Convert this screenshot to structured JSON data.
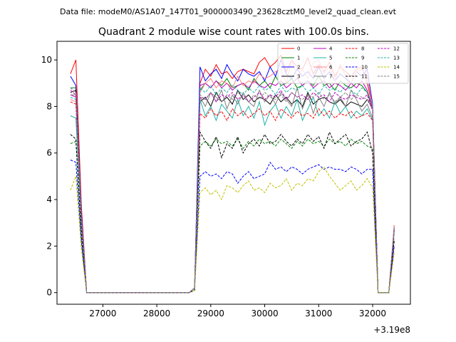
{
  "figure": {
    "suptitle": "Data file: modeM0/AS1A07_147T01_9000003490_23628cztM0_level2_quad_clean.evt"
  },
  "chart_data": {
    "type": "line",
    "title": "Quadrant 2 module wise count rates with 100.0s bins.",
    "xlabel": "",
    "ylabel": "",
    "offset_label": "+3.19e8",
    "xlim": [
      26150,
      32700
    ],
    "ylim": [
      -0.5,
      10.8
    ],
    "x_ticks": [
      "27000",
      "28000",
      "29000",
      "30000",
      "31000",
      "32000"
    ],
    "y_ticks": [
      "0",
      "2",
      "4",
      "6",
      "8",
      "10"
    ],
    "grid": false,
    "legend_position": "top-right",
    "x": [
      26400,
      26500,
      26600,
      26700,
      26800,
      26900,
      27000,
      27100,
      27200,
      27300,
      27400,
      27500,
      27600,
      27700,
      27800,
      27900,
      28000,
      28100,
      28200,
      28300,
      28400,
      28500,
      28600,
      28700,
      28800,
      28900,
      29000,
      29100,
      29200,
      29300,
      29400,
      29500,
      29600,
      29700,
      29800,
      29900,
      30000,
      30100,
      30200,
      30300,
      30400,
      30500,
      30600,
      30700,
      30800,
      30900,
      31000,
      31100,
      31200,
      31300,
      31400,
      31500,
      31600,
      31700,
      31800,
      31900,
      32000,
      32100,
      32200,
      32300,
      32400
    ],
    "series": [
      {
        "name": "0",
        "color": "#ff0000",
        "dash": "solid",
        "values": [
          9.4,
          10.0,
          3.8,
          0.0,
          0,
          0,
          0,
          0,
          0,
          0,
          0,
          0,
          0,
          0,
          0,
          0,
          0,
          0,
          0,
          0,
          0,
          0,
          0,
          0.2,
          9.0,
          9.6,
          9.3,
          9.8,
          9.4,
          9.5,
          9.2,
          9.5,
          9.6,
          9.5,
          9.4,
          9.9,
          10.1,
          9.7,
          9.9,
          10.2,
          9.5,
          10.0,
          9.7,
          9.6,
          10.1,
          9.4,
          9.8,
          9.5,
          9.9,
          9.3,
          9.7,
          9.5,
          9.3,
          9.6,
          9.7,
          9.0,
          8.0,
          0.0,
          0.0,
          0.0,
          2.9
        ]
      },
      {
        "name": "1",
        "color": "#008000",
        "dash": "solid",
        "values": [
          8.8,
          8.8,
          3.4,
          0.0,
          0,
          0,
          0,
          0,
          0,
          0,
          0,
          0,
          0,
          0,
          0,
          0,
          0,
          0,
          0,
          0,
          0,
          0,
          0,
          0.2,
          8.7,
          9.0,
          8.8,
          9.1,
          8.9,
          9.2,
          8.8,
          8.9,
          9.0,
          8.7,
          9.2,
          8.9,
          9.1,
          8.8,
          9.3,
          8.9,
          9.0,
          9.2,
          8.8,
          8.9,
          9.1,
          8.9,
          9.3,
          8.9,
          9.0,
          8.7,
          9.1,
          8.9,
          8.8,
          9.0,
          8.9,
          8.6,
          7.9,
          0.0,
          0.0,
          0.0,
          2.7
        ]
      },
      {
        "name": "2",
        "color": "#0000ff",
        "dash": "solid",
        "values": [
          9.3,
          8.9,
          3.5,
          0.0,
          0,
          0,
          0,
          0,
          0,
          0,
          0,
          0,
          0,
          0,
          0,
          0,
          0,
          0,
          0,
          0,
          0,
          0,
          0,
          0.2,
          9.7,
          9.1,
          9.4,
          9.6,
          9.2,
          9.8,
          9.4,
          9.1,
          9.6,
          9.4,
          9.3,
          9.5,
          9.1,
          9.7,
          9.3,
          10.0,
          9.4,
          9.2,
          9.6,
          9.3,
          9.5,
          9.2,
          9.7,
          9.2,
          9.5,
          9.1,
          9.4,
          9.2,
          9.0,
          9.5,
          9.3,
          9.6,
          8.1,
          0.0,
          0.0,
          0.0,
          2.8
        ]
      },
      {
        "name": "3",
        "color": "#000000",
        "dash": "solid",
        "values": [
          8.6,
          8.7,
          3.2,
          0.0,
          0,
          0,
          0,
          0,
          0,
          0,
          0,
          0,
          0,
          0,
          0,
          0,
          0,
          0,
          0,
          0,
          0,
          0,
          0,
          0.2,
          8.2,
          8.4,
          8.0,
          8.6,
          8.2,
          8.4,
          8.1,
          8.7,
          8.3,
          8.5,
          8.2,
          8.4,
          8.3,
          8.1,
          8.5,
          8.2,
          8.4,
          8.1,
          8.3,
          8.0,
          8.6,
          8.1,
          8.3,
          8.4,
          8.2,
          8.1,
          8.3,
          8.0,
          8.2,
          8.1,
          8.0,
          8.3,
          7.9,
          0.0,
          0.0,
          0.0,
          2.7
        ]
      },
      {
        "name": "4",
        "color": "#c000c0",
        "dash": "solid",
        "values": [
          8.5,
          8.4,
          3.3,
          0.0,
          0,
          0,
          0,
          0,
          0,
          0,
          0,
          0,
          0,
          0,
          0,
          0,
          0,
          0,
          0,
          0,
          0,
          0,
          0,
          0.2,
          8.9,
          9.0,
          8.8,
          9.1,
          8.8,
          9.0,
          8.7,
          8.9,
          9.0,
          8.8,
          9.1,
          8.9,
          8.8,
          9.0,
          8.9,
          9.1,
          8.8,
          9.0,
          9.2,
          8.9,
          9.1,
          8.8,
          9.0,
          9.1,
          8.8,
          9.0,
          8.9,
          8.7,
          9.0,
          8.8,
          9.1,
          8.7,
          7.9,
          0.0,
          0.0,
          0.0,
          2.8
        ]
      },
      {
        "name": "5",
        "color": "#20b2aa",
        "dash": "solid",
        "values": [
          7.6,
          7.5,
          3.0,
          0.0,
          0,
          0,
          0,
          0,
          0,
          0,
          0,
          0,
          0,
          0,
          0,
          0,
          0,
          0,
          0,
          0,
          0,
          0,
          0,
          0.2,
          8.3,
          7.6,
          8.0,
          7.4,
          8.1,
          7.8,
          7.5,
          8.3,
          7.6,
          8.0,
          7.5,
          8.2,
          7.2,
          7.8,
          8.1,
          7.5,
          8.0,
          7.6,
          8.3,
          7.4,
          7.9,
          8.4,
          7.6,
          7.9,
          7.5,
          8.2,
          7.7,
          8.0,
          7.5,
          7.8,
          7.6,
          7.9,
          7.4,
          0.0,
          0.0,
          0.0,
          2.6
        ]
      },
      {
        "name": "6",
        "color": "#ff8080",
        "dash": "solid",
        "values": [
          8.3,
          8.2,
          3.2,
          0.0,
          0,
          0,
          0,
          0,
          0,
          0,
          0,
          0,
          0,
          0,
          0,
          0,
          0,
          0,
          0,
          0,
          0,
          0,
          0,
          0.2,
          8.6,
          9.0,
          9.2,
          8.8,
          9.1,
          9.0,
          8.8,
          9.3,
          8.9,
          9.1,
          9.0,
          9.4,
          9.2,
          9.3,
          9.5,
          9.6,
          9.0,
          10.0,
          9.3,
          9.6,
          9.2,
          9.9,
          10.0,
          9.4,
          9.7,
          9.1,
          9.8,
          9.3,
          9.0,
          9.5,
          9.6,
          9.3,
          8.0,
          0.0,
          0.0,
          0.0,
          2.9
        ]
      },
      {
        "name": "7",
        "color": "#808080",
        "dash": "solid",
        "values": [
          8.5,
          8.5,
          3.2,
          0.0,
          0,
          0,
          0,
          0,
          0,
          0,
          0,
          0,
          0,
          0,
          0,
          0,
          0,
          0,
          0,
          0,
          0,
          0,
          0,
          0.2,
          8.4,
          8.0,
          8.6,
          8.2,
          8.7,
          7.9,
          8.5,
          8.1,
          8.6,
          8.2,
          8.0,
          8.7,
          8.2,
          8.5,
          8.1,
          8.6,
          8.3,
          8.0,
          8.8,
          7.9,
          8.5,
          7.7,
          8.4,
          8.0,
          8.6,
          8.1,
          8.4,
          8.0,
          8.7,
          8.3,
          7.8,
          8.1,
          7.5,
          0.0,
          0.0,
          0.0,
          2.7
        ]
      },
      {
        "name": "8",
        "color": "#ff0000",
        "dash": "dashed",
        "values": [
          8.2,
          8.1,
          3.1,
          0.0,
          0,
          0,
          0,
          0,
          0,
          0,
          0,
          0,
          0,
          0,
          0,
          0,
          0,
          0,
          0,
          0,
          0,
          0,
          0,
          0.2,
          7.7,
          7.5,
          7.9,
          7.6,
          7.8,
          7.4,
          7.9,
          7.6,
          7.8,
          7.5,
          7.7,
          7.9,
          7.6,
          7.8,
          7.4,
          7.9,
          7.7,
          7.5,
          7.8,
          7.6,
          7.7,
          7.5,
          7.9,
          7.6,
          7.8,
          7.5,
          7.7,
          7.6,
          7.8,
          7.5,
          7.6,
          7.7,
          7.4,
          0.0,
          0.0,
          0.0,
          2.7
        ]
      },
      {
        "name": "9",
        "color": "#008000",
        "dash": "dashed",
        "values": [
          6.4,
          6.5,
          2.4,
          0.0,
          0,
          0,
          0,
          0,
          0,
          0,
          0,
          0,
          0,
          0,
          0,
          0,
          0,
          0,
          0,
          0,
          0,
          0,
          0,
          0.1,
          6.3,
          6.5,
          6.3,
          6.6,
          6.4,
          6.5,
          6.3,
          6.6,
          6.2,
          6.5,
          6.3,
          6.6,
          6.4,
          6.5,
          6.3,
          6.6,
          6.4,
          6.2,
          6.5,
          6.3,
          6.6,
          6.4,
          6.5,
          6.3,
          6.6,
          6.4,
          6.5,
          6.3,
          6.6,
          6.4,
          6.5,
          6.3,
          6.2,
          0.0,
          0.0,
          0.0,
          2.2
        ]
      },
      {
        "name": "10",
        "color": "#0000ff",
        "dash": "dashed",
        "values": [
          5.7,
          5.6,
          2.2,
          0.0,
          0,
          0,
          0,
          0,
          0,
          0,
          0,
          0,
          0,
          0,
          0,
          0,
          0,
          0,
          0,
          0,
          0,
          0,
          0,
          0.1,
          5.0,
          5.2,
          5.0,
          5.1,
          4.9,
          5.2,
          5.1,
          4.7,
          5.0,
          5.2,
          4.9,
          5.0,
          5.1,
          5.6,
          5.3,
          5.4,
          5.2,
          5.4,
          5.3,
          5.1,
          5.3,
          5.4,
          5.5,
          5.3,
          5.4,
          5.3,
          5.3,
          5.2,
          5.4,
          5.3,
          5.1,
          5.3,
          5.3,
          0.0,
          0.0,
          0.0,
          2.0
        ]
      },
      {
        "name": "11",
        "color": "#000000",
        "dash": "dashed",
        "values": [
          6.8,
          6.6,
          2.6,
          0.0,
          0,
          0,
          0,
          0,
          0,
          0,
          0,
          0,
          0,
          0,
          0,
          0,
          0,
          0,
          0,
          0,
          0,
          0,
          0,
          0.1,
          6.9,
          6.5,
          6.2,
          6.7,
          5.8,
          6.4,
          6.2,
          6.7,
          6.0,
          6.4,
          6.6,
          6.3,
          6.8,
          6.4,
          6.5,
          6.8,
          6.5,
          6.3,
          6.6,
          6.4,
          6.8,
          6.5,
          6.7,
          6.2,
          6.9,
          6.4,
          6.6,
          6.8,
          6.3,
          6.5,
          6.6,
          6.9,
          6.0,
          0.0,
          0.0,
          0.0,
          2.3
        ]
      },
      {
        "name": "12",
        "color": "#c000c0",
        "dash": "dashed",
        "values": [
          8.7,
          8.5,
          3.3,
          0.0,
          0,
          0,
          0,
          0,
          0,
          0,
          0,
          0,
          0,
          0,
          0,
          0,
          0,
          0,
          0,
          0,
          0,
          0,
          0,
          0.2,
          8.4,
          8.3,
          8.6,
          8.2,
          8.5,
          8.4,
          8.6,
          8.3,
          8.5,
          8.2,
          8.4,
          8.6,
          8.3,
          8.5,
          8.4,
          8.7,
          8.3,
          8.6,
          8.4,
          8.5,
          8.3,
          8.6,
          8.4,
          8.5,
          8.2,
          8.6,
          8.4,
          8.3,
          8.5,
          8.4,
          8.3,
          8.5,
          7.8,
          0.0,
          0.0,
          0.0,
          2.7
        ]
      },
      {
        "name": "13",
        "color": "#20b2aa",
        "dash": "dashed",
        "values": [
          8.4,
          8.3,
          3.2,
          0.0,
          0,
          0,
          0,
          0,
          0,
          0,
          0,
          0,
          0,
          0,
          0,
          0,
          0,
          0,
          0,
          0,
          0,
          0,
          0,
          0.2,
          8.8,
          8.6,
          8.9,
          8.5,
          8.8,
          8.6,
          8.9,
          8.7,
          8.5,
          8.8,
          8.6,
          8.9,
          8.7,
          8.8,
          8.5,
          8.9,
          8.6,
          8.8,
          8.7,
          8.9,
          8.6,
          8.8,
          8.5,
          8.9,
          8.7,
          8.8,
          8.6,
          8.9,
          8.7,
          8.5,
          8.8,
          8.6,
          8.1,
          0.0,
          0.0,
          0.0,
          2.8
        ]
      },
      {
        "name": "14",
        "color": "#c0c000",
        "dash": "dashed",
        "values": [
          4.4,
          5.0,
          1.9,
          0.0,
          0,
          0,
          0,
          0,
          0,
          0,
          0,
          0,
          0,
          0,
          0,
          0,
          0,
          0,
          0,
          0,
          0,
          0,
          0,
          0.1,
          4.3,
          4.5,
          4.2,
          4.4,
          4.0,
          4.6,
          4.5,
          4.3,
          4.6,
          4.8,
          4.4,
          4.5,
          4.3,
          4.7,
          4.5,
          4.6,
          4.9,
          4.4,
          4.7,
          4.6,
          4.9,
          4.8,
          5.2,
          5.4,
          5.0,
          4.7,
          4.4,
          4.6,
          4.8,
          4.4,
          4.6,
          4.9,
          4.5,
          0.0,
          0.0,
          0.0,
          1.7
        ]
      },
      {
        "name": "15",
        "color": "#808080",
        "dash": "dashed",
        "values": [
          8.8,
          8.6,
          3.3,
          0.0,
          0,
          0,
          0,
          0,
          0,
          0,
          0,
          0,
          0,
          0,
          0,
          0,
          0,
          0,
          0,
          0,
          0,
          0,
          0,
          0.2,
          8.5,
          8.3,
          8.6,
          8.4,
          8.2,
          8.5,
          8.3,
          8.6,
          8.4,
          8.2,
          8.5,
          8.3,
          8.6,
          8.4,
          8.3,
          8.5,
          8.2,
          8.6,
          8.4,
          8.3,
          8.5,
          8.4,
          8.6,
          8.3,
          8.5,
          8.2,
          8.4,
          8.6,
          8.3,
          8.5,
          8.4,
          8.3,
          7.9,
          0.0,
          0.0,
          0.0,
          2.8
        ]
      }
    ]
  }
}
